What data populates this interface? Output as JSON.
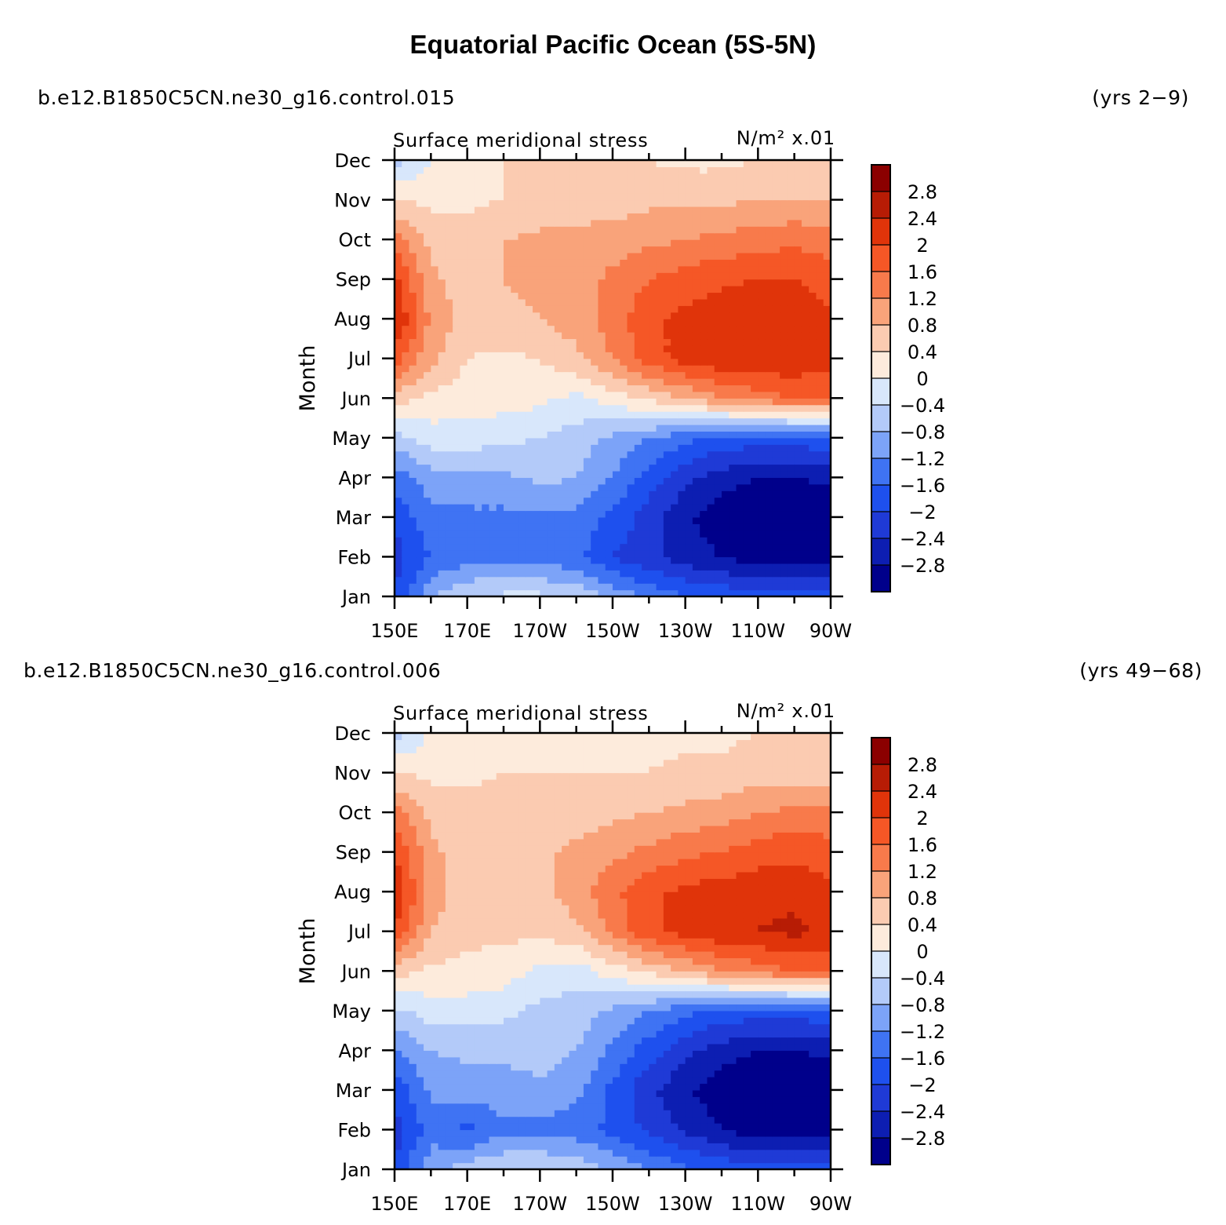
{
  "figure": {
    "title": "Equatorial Pacific Ocean (5S-5N)"
  },
  "panels": [
    {
      "case": "b.e12.B1850C5CN.ne30_g16.control.015",
      "years": "(yrs 2−9)",
      "left_label": "Surface meridional stress",
      "right_label": "N/m² x.01",
      "ylabel": "Month"
    },
    {
      "case": "b.e12.B1850C5CN.ne30_g16.control.006",
      "years": "(yrs 49−68)",
      "left_label": "Surface meridional stress",
      "right_label": "N/m² x.01",
      "ylabel": "Month"
    }
  ],
  "chart_data": [
    {
      "type": "heatmap",
      "title": "Surface meridional stress",
      "units": "N/m² x.01",
      "xlabel": "",
      "ylabel": "Month",
      "x_tick_labels": [
        "150E",
        "170E",
        "170W",
        "150W",
        "130W",
        "110W",
        "90W"
      ],
      "x": [
        150,
        160,
        170,
        180,
        190,
        200,
        210,
        220,
        230,
        240,
        250,
        260,
        270
      ],
      "y": [
        "Jan",
        "Feb",
        "Mar",
        "Apr",
        "May",
        "Jun",
        "Jul",
        "Aug",
        "Sep",
        "Oct",
        "Nov",
        "Dec"
      ],
      "z": [
        [
          -2.0,
          -0.8,
          -0.4,
          -0.3,
          -0.3,
          -0.5,
          -0.9,
          -1.3,
          -1.6,
          -1.7,
          -1.8,
          -1.8,
          -1.8
        ],
        [
          -2.2,
          -1.6,
          -1.4,
          -1.4,
          -1.4,
          -1.5,
          -2.0,
          -2.3,
          -2.6,
          -2.8,
          -3.1,
          -3.1,
          -3.0
        ],
        [
          -1.9,
          -1.3,
          -1.3,
          -1.3,
          -1.3,
          -1.3,
          -1.7,
          -2.2,
          -2.7,
          -3.1,
          -3.2,
          -3.2,
          -3.1
        ],
        [
          -1.4,
          -1.0,
          -0.9,
          -0.9,
          -0.7,
          -0.8,
          -1.2,
          -1.8,
          -2.3,
          -2.6,
          -2.8,
          -2.8,
          -2.7
        ],
        [
          -0.6,
          -0.2,
          -0.2,
          -0.3,
          -0.4,
          -0.6,
          -0.9,
          -1.2,
          -1.5,
          -1.7,
          -1.8,
          -1.8,
          -1.7
        ],
        [
          0.6,
          0.3,
          0.2,
          0.2,
          0.1,
          -0.1,
          0.2,
          0.5,
          0.8,
          1.2,
          1.4,
          1.6,
          1.6
        ],
        [
          1.8,
          0.9,
          0.4,
          0.3,
          0.4,
          0.7,
          1.2,
          1.8,
          2.2,
          2.3,
          2.4,
          2.3,
          2.2
        ],
        [
          2.5,
          1.1,
          0.6,
          0.7,
          0.8,
          1.0,
          1.4,
          1.9,
          2.1,
          2.3,
          2.4,
          2.3,
          2.1
        ],
        [
          2.1,
          0.9,
          0.6,
          0.8,
          0.9,
          1.0,
          1.3,
          1.6,
          1.8,
          1.9,
          2.0,
          2.0,
          1.8
        ],
        [
          1.4,
          0.7,
          0.6,
          0.8,
          0.9,
          0.9,
          1.0,
          1.1,
          1.2,
          1.3,
          1.4,
          1.5,
          1.4
        ],
        [
          0.4,
          0.3,
          0.3,
          0.4,
          0.5,
          0.6,
          0.6,
          0.7,
          0.7,
          0.7,
          0.8,
          0.8,
          0.8
        ],
        [
          -0.6,
          0.0,
          0.2,
          0.4,
          0.5,
          0.5,
          0.5,
          0.4,
          0.3,
          0.3,
          0.4,
          0.4,
          0.4
        ]
      ],
      "levels": [
        -2.8,
        -2.4,
        -2.0,
        -1.6,
        -1.2,
        -0.8,
        -0.4,
        0,
        0.4,
        0.8,
        1.2,
        1.6,
        2.0,
        2.4,
        2.8
      ],
      "colorbar_labels": [
        "2.8",
        "2.4",
        "2",
        "1.6",
        "1.2",
        "0.8",
        "0.4",
        "0",
        "−0.4",
        "−0.8",
        "−1.2",
        "−1.6",
        "−2",
        "−2.4",
        "−2.8"
      ],
      "colors": [
        "#00008b",
        "#0d1eb2",
        "#1f3ad6",
        "#1e50ee",
        "#3f73f3",
        "#7ca3f8",
        "#b3caf9",
        "#d8e7fb",
        "#fdebdc",
        "#fbcbb1",
        "#f9a37a",
        "#f87a4b",
        "#f55726",
        "#e0340a",
        "#b71c05",
        "#8b0000"
      ]
    },
    {
      "type": "heatmap",
      "title": "Surface meridional stress",
      "units": "N/m² x.01",
      "xlabel": "",
      "ylabel": "Month",
      "x_tick_labels": [
        "150E",
        "170E",
        "170W",
        "150W",
        "130W",
        "110W",
        "90W"
      ],
      "x": [
        150,
        160,
        170,
        180,
        190,
        200,
        210,
        220,
        230,
        240,
        250,
        260,
        270
      ],
      "y": [
        "Jan",
        "Feb",
        "Mar",
        "Apr",
        "May",
        "Jun",
        "Jul",
        "Aug",
        "Sep",
        "Oct",
        "Nov",
        "Dec"
      ],
      "z": [
        [
          -2.0,
          -0.9,
          -0.6,
          -0.4,
          -0.4,
          -0.5,
          -0.9,
          -1.2,
          -1.5,
          -1.7,
          -1.8,
          -1.8,
          -1.7
        ],
        [
          -2.2,
          -1.4,
          -1.7,
          -1.3,
          -1.3,
          -1.4,
          -1.7,
          -2.1,
          -2.5,
          -2.8,
          -3.1,
          -3.1,
          -3.0
        ],
        [
          -1.9,
          -1.1,
          -1.0,
          -1.0,
          -0.9,
          -1.1,
          -1.7,
          -2.3,
          -2.7,
          -3.1,
          -3.2,
          -3.2,
          -3.1
        ],
        [
          -1.3,
          -0.8,
          -0.7,
          -0.7,
          -0.6,
          -0.8,
          -1.3,
          -1.8,
          -2.3,
          -2.6,
          -2.8,
          -2.8,
          -2.7
        ],
        [
          -0.5,
          -0.2,
          -0.2,
          -0.3,
          -0.5,
          -0.6,
          -0.9,
          -1.2,
          -1.5,
          -1.7,
          -1.8,
          -1.8,
          -1.7
        ],
        [
          0.6,
          0.3,
          0.3,
          0.2,
          -0.1,
          -0.2,
          0.2,
          0.5,
          0.8,
          1.2,
          1.4,
          1.6,
          1.6
        ],
        [
          2.0,
          0.8,
          0.5,
          0.5,
          0.5,
          0.7,
          1.3,
          1.9,
          2.2,
          2.3,
          2.4,
          2.5,
          2.3
        ],
        [
          2.4,
          1.0,
          0.6,
          0.6,
          0.7,
          1.0,
          1.5,
          1.9,
          2.1,
          2.2,
          2.3,
          2.3,
          2.1
        ],
        [
          2.0,
          0.9,
          0.6,
          0.6,
          0.7,
          0.9,
          1.1,
          1.3,
          1.5,
          1.6,
          1.8,
          1.9,
          1.8
        ],
        [
          1.4,
          0.7,
          0.6,
          0.6,
          0.6,
          0.6,
          0.7,
          0.8,
          0.9,
          1.0,
          1.2,
          1.3,
          1.3
        ],
        [
          0.4,
          0.3,
          0.3,
          0.4,
          0.4,
          0.4,
          0.4,
          0.4,
          0.5,
          0.5,
          0.6,
          0.6,
          0.6
        ],
        [
          -0.6,
          0.1,
          0.2,
          0.3,
          0.3,
          0.3,
          0.3,
          0.3,
          0.3,
          0.3,
          0.4,
          0.4,
          0.4
        ]
      ],
      "levels": [
        -2.8,
        -2.4,
        -2.0,
        -1.6,
        -1.2,
        -0.8,
        -0.4,
        0,
        0.4,
        0.8,
        1.2,
        1.6,
        2.0,
        2.4,
        2.8
      ],
      "colorbar_labels": [
        "2.8",
        "2.4",
        "2",
        "1.6",
        "1.2",
        "0.8",
        "0.4",
        "0",
        "−0.4",
        "−0.8",
        "−1.2",
        "−1.6",
        "−2",
        "−2.4",
        "−2.8"
      ],
      "colors": [
        "#00008b",
        "#0d1eb2",
        "#1f3ad6",
        "#1e50ee",
        "#3f73f3",
        "#7ca3f8",
        "#b3caf9",
        "#d8e7fb",
        "#fdebdc",
        "#fbcbb1",
        "#f9a37a",
        "#f87a4b",
        "#f55726",
        "#e0340a",
        "#b71c05",
        "#8b0000"
      ]
    }
  ]
}
